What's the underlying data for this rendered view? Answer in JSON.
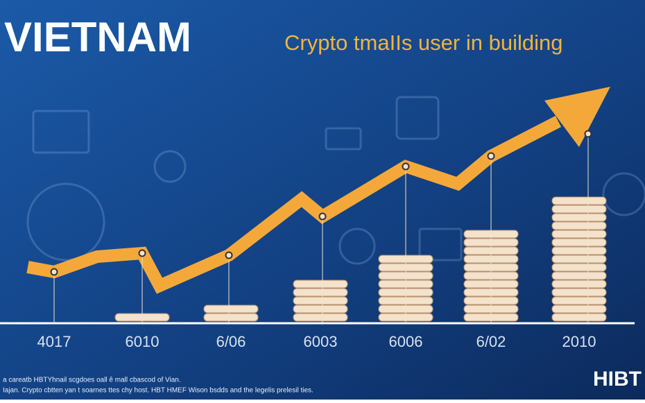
{
  "chart_data": {
    "type": "bar",
    "title": "VIETNAM",
    "subtitle": "Crypto tmaIIs user in building",
    "categories": [
      "4017",
      "6010",
      "6/06",
      "6003",
      "6006",
      "6/02",
      "2010"
    ],
    "values": [
      0,
      1,
      2,
      5,
      8,
      11,
      15
    ]
  },
  "footnote": [
    "a careatb HBTYhnail scgdoes oall ê mall cbascod of Vian.",
    "Iajan. Crypto cbtten yan t soarnes ttes chy host. HBT HMEF Wison bsdds and the legelis prelesil ties."
  ],
  "logo": "HIBT"
}
